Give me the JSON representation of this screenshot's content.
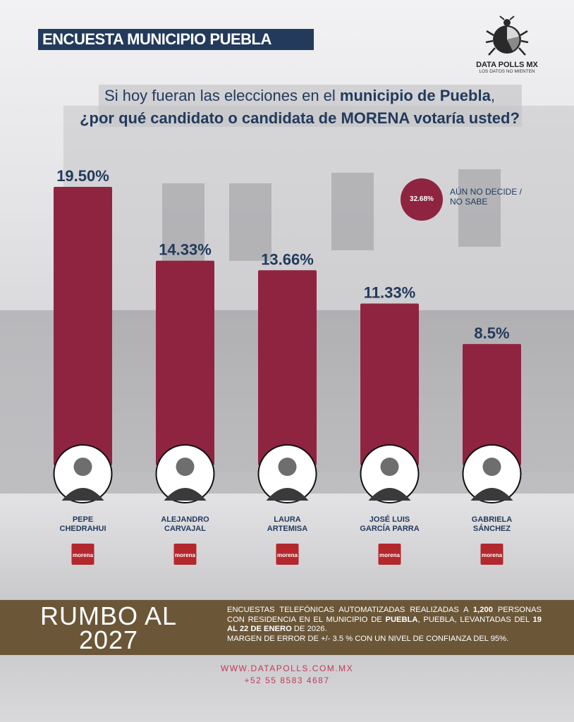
{
  "header": {
    "title": "ENCUESTA MUNICIPIO PUEBLA",
    "logo_name": "DATA POLLS MX",
    "logo_tagline": "LOS DATOS NO MIENTEN"
  },
  "question": {
    "line1_pre": "Si hoy fueran las elecciones en el ",
    "line1_bold": "municipio de Puebla",
    "line1_post": ",",
    "line2": "¿por qué candidato o candidata de MORENA votaría usted?"
  },
  "undecided": {
    "value": "32.68%",
    "label_line1": "AÚN NO DECIDE /",
    "label_line2": "NO SABE"
  },
  "chart_data": {
    "type": "bar",
    "categories": [
      "PEPE CHEDRAHUI",
      "ALEJANDRO CARVAJAL",
      "LAURA ARTEMISA",
      "JOSÉ LUIS GARCÍA PARRA",
      "GABRIELA SÁNCHEZ"
    ],
    "names": [
      [
        "PEPE",
        "CHEDRAHUI"
      ],
      [
        "ALEJANDRO",
        "CARVAJAL"
      ],
      [
        "LAURA",
        "ARTEMISA"
      ],
      [
        "JOSÉ LUIS",
        "GARCÍA PARRA"
      ],
      [
        "GABRIELA",
        "SÁNCHEZ"
      ]
    ],
    "values": [
      19.5,
      14.33,
      13.66,
      11.33,
      8.5
    ],
    "labels": [
      "19.50%",
      "14.33%",
      "13.66%",
      "11.33%",
      "8.5%"
    ],
    "party": "morena",
    "bar_color": "#8f2441",
    "ylim": [
      0,
      20
    ]
  },
  "band": {
    "title_line1": "RUMBO AL",
    "title_line2": "2027",
    "t1": "ENCUESTAS TELEFÓNICAS AUTOMATIZADAS REALIZADAS A ",
    "t1b": "1,200",
    "t2": " PERSONAS CON RESIDENCIA EN EL MUNICIPIO DE ",
    "t2b": "PUEBLA",
    "t3": ", PUEBLA, LEVANTADAS DEL ",
    "t3b": "19 AL 22 DE ENERO",
    "t4": " DE 2026.",
    "t5": "MARGEN DE ERROR DE +/- 3.5 % CON UN NIVEL DE CONFIANZA DEL 95%."
  },
  "footer": {
    "website": "WWW.DATAPOLLS.COM.MX",
    "phone": "+52 55 8583 4687"
  }
}
